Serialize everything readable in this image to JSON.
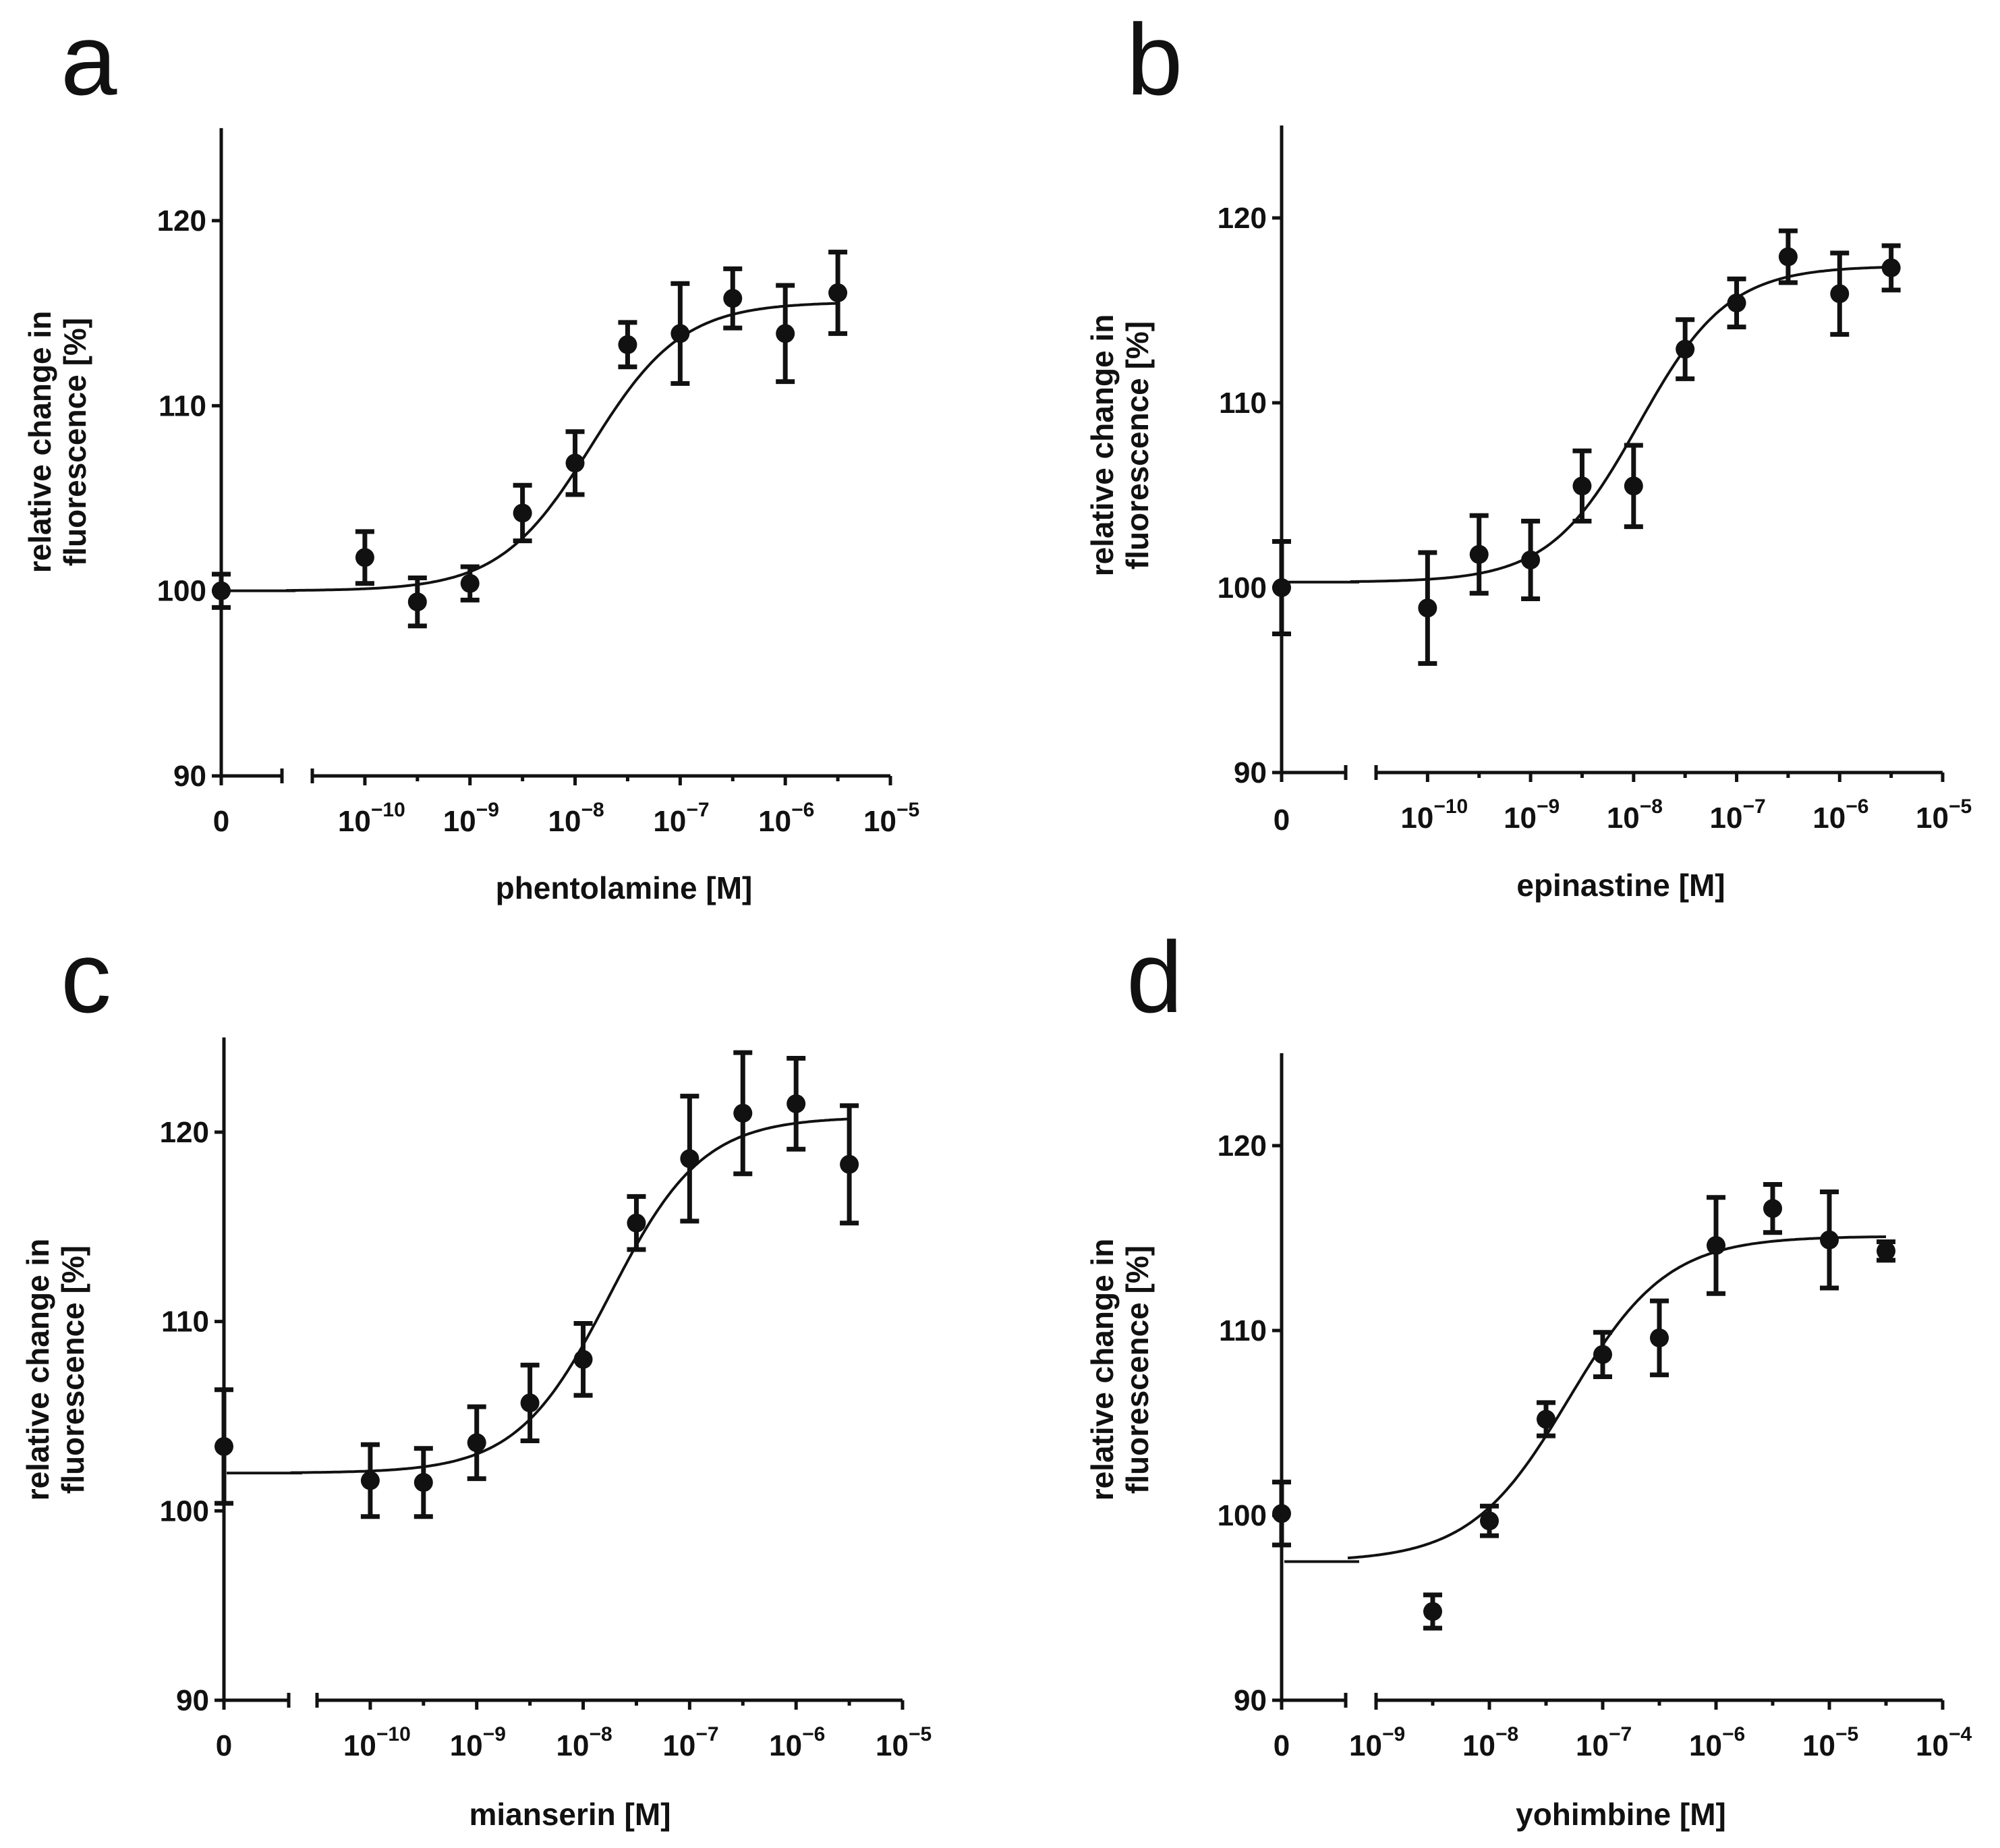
{
  "chart_data": [
    {
      "type": "scatter",
      "panel": "a",
      "xlabel": "phentolamine [M]",
      "ylabel": [
        "relative change in",
        "fluorescence [%]"
      ],
      "ylim": [
        90,
        125
      ],
      "yticks": [
        "90",
        "100",
        "110",
        "120"
      ],
      "xzero_label": "0",
      "log_xlim": [
        -10.5,
        -5
      ],
      "xticks_exp": [
        "−10",
        "−9",
        "−8",
        "−7",
        "−6",
        "−5"
      ],
      "zero_point": {
        "y": 100.0,
        "err": 0.9
      },
      "points": [
        {
          "logx": -10,
          "y": 101.8,
          "err": 1.4
        },
        {
          "logx": -9.5,
          "y": 99.4,
          "err": 1.3
        },
        {
          "logx": -9,
          "y": 100.4,
          "err": 0.9
        },
        {
          "logx": -8.5,
          "y": 104.2,
          "err": 1.5
        },
        {
          "logx": -8,
          "y": 106.9,
          "err": 1.7
        },
        {
          "logx": -7.5,
          "y": 113.3,
          "err": 1.2
        },
        {
          "logx": -7,
          "y": 113.9,
          "err": 2.7
        },
        {
          "logx": -6.5,
          "y": 115.8,
          "err": 1.6
        },
        {
          "logx": -6,
          "y": 113.9,
          "err": 2.6
        },
        {
          "logx": -5.5,
          "y": 116.1,
          "err": 2.2
        }
      ],
      "fit": {
        "bottom": 100.0,
        "top": 115.6,
        "logEC50": -7.85,
        "hill": 1.0
      }
    },
    {
      "type": "scatter",
      "panel": "b",
      "xlabel": "epinastine [M]",
      "ylabel": [
        "relative change in",
        "fluorescence [%]"
      ],
      "ylim": [
        90,
        125
      ],
      "yticks": [
        "90",
        "100",
        "110",
        "120"
      ],
      "xzero_label": "0",
      "log_xlim": [
        -10.5,
        -5
      ],
      "xticks_exp": [
        "−10",
        "−9",
        "−8",
        "−7",
        "−6",
        "−5"
      ],
      "zero_point": {
        "y": 100.0,
        "err": 2.5
      },
      "points": [
        {
          "logx": -10,
          "y": 98.9,
          "err": 3.0
        },
        {
          "logx": -9.5,
          "y": 101.8,
          "err": 2.1
        },
        {
          "logx": -9,
          "y": 101.5,
          "err": 2.1
        },
        {
          "logx": -8.5,
          "y": 105.5,
          "err": 1.9
        },
        {
          "logx": -8,
          "y": 105.5,
          "err": 2.2
        },
        {
          "logx": -7.5,
          "y": 112.9,
          "err": 1.6
        },
        {
          "logx": -7,
          "y": 115.4,
          "err": 1.3
        },
        {
          "logx": -6.5,
          "y": 117.9,
          "err": 1.4
        },
        {
          "logx": -6,
          "y": 115.9,
          "err": 2.2
        },
        {
          "logx": -5.5,
          "y": 117.3,
          "err": 1.2
        }
      ],
      "fit": {
        "bottom": 100.3,
        "top": 117.4,
        "logEC50": -7.95,
        "hill": 1.0
      }
    },
    {
      "type": "scatter",
      "panel": "c",
      "xlabel": "mianserin [M]",
      "ylabel": [
        "relative change in",
        "fluorescence [%]"
      ],
      "ylim": [
        90,
        125
      ],
      "yticks": [
        "90",
        "100",
        "110",
        "120"
      ],
      "xzero_label": "0",
      "log_xlim": [
        -10.5,
        -5
      ],
      "xticks_exp": [
        "−10",
        "−9",
        "−8",
        "−7",
        "−6",
        "−5"
      ],
      "zero_point": {
        "y": 103.4,
        "err": 3.0
      },
      "points": [
        {
          "logx": -10,
          "y": 101.6,
          "err": 1.9
        },
        {
          "logx": -9.5,
          "y": 101.5,
          "err": 1.8
        },
        {
          "logx": -9,
          "y": 103.6,
          "err": 1.9
        },
        {
          "logx": -8.5,
          "y": 105.7,
          "err": 2.0
        },
        {
          "logx": -8,
          "y": 108.0,
          "err": 1.9
        },
        {
          "logx": -7.5,
          "y": 115.2,
          "err": 1.4
        },
        {
          "logx": -7,
          "y": 118.6,
          "err": 3.3
        },
        {
          "logx": -6.5,
          "y": 121.0,
          "err": 3.2
        },
        {
          "logx": -6,
          "y": 121.5,
          "err": 2.4
        },
        {
          "logx": -5.5,
          "y": 118.3,
          "err": 3.1
        }
      ],
      "fit": {
        "bottom": 102.0,
        "top": 120.8,
        "logEC50": -7.75,
        "hill": 1.0
      }
    },
    {
      "type": "scatter",
      "panel": "d",
      "xlabel": "yohimbine [M]",
      "ylabel": [
        "relative change in",
        "fluorescence [%]"
      ],
      "ylim": [
        90,
        125
      ],
      "yticks": [
        "90",
        "100",
        "110",
        "120"
      ],
      "xzero_label": "0",
      "log_xlim": [
        -9,
        -4
      ],
      "xticks_exp": [
        "−9",
        "−8",
        "−7",
        "−6",
        "−5",
        "−4"
      ],
      "zero_point": {
        "y": 100.1,
        "err": 1.7
      },
      "points": [
        {
          "logx": -8.5,
          "y": 94.8,
          "err": 0.9
        },
        {
          "logx": -8,
          "y": 99.7,
          "err": 0.8
        },
        {
          "logx": -7.5,
          "y": 105.2,
          "err": 0.9
        },
        {
          "logx": -7,
          "y": 108.7,
          "err": 1.2
        },
        {
          "logx": -6.5,
          "y": 109.6,
          "err": 2.0
        },
        {
          "logx": -6,
          "y": 114.6,
          "err": 2.6
        },
        {
          "logx": -5.5,
          "y": 116.6,
          "err": 1.3
        },
        {
          "logx": -5,
          "y": 114.9,
          "err": 2.6
        },
        {
          "logx": -4.5,
          "y": 114.3,
          "err": 0.5
        }
      ],
      "fit": {
        "bottom": 97.5,
        "top": 115.1,
        "logEC50": -7.3,
        "hill": 1.0
      }
    }
  ],
  "tick_base": "10"
}
